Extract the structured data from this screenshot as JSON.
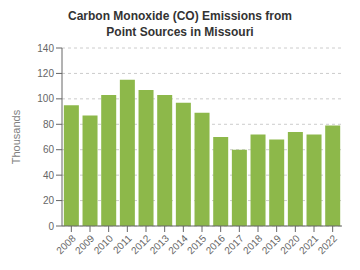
{
  "chart_data": {
    "type": "bar",
    "title": "Carbon Monoxide (CO) Emissions from\nPoint Sources in Missouri",
    "ylabel": "Thousands",
    "categories": [
      "2008",
      "2009",
      "2010",
      "2011",
      "2012",
      "2013",
      "2014",
      "2015",
      "2016",
      "2017",
      "2018",
      "2019",
      "2020",
      "2021",
      "2022"
    ],
    "values": [
      95,
      87,
      103,
      115,
      107,
      103,
      97,
      89,
      70,
      60,
      72,
      68,
      74,
      72,
      79
    ],
    "color": "#8db84a",
    "ylim": [
      0,
      140
    ],
    "yticks": [
      0,
      20,
      40,
      60,
      80,
      100,
      120,
      140
    ],
    "grid": true
  }
}
